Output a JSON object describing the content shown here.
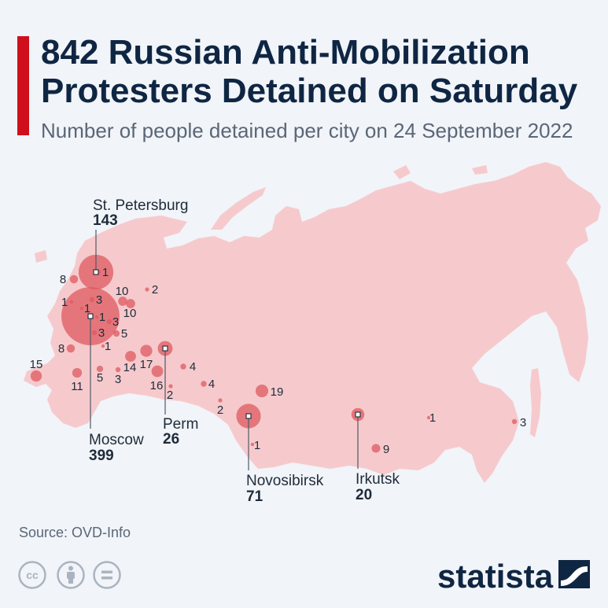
{
  "header": {
    "title": [
      "842 Russian Anti-Mobilization",
      "Protesters Detained on Saturday"
    ],
    "subtitle": "Number of people detained per city on 24 September 2022"
  },
  "map_data": {
    "type": "bubble-map",
    "labeled_cities": [
      {
        "city": "St. Petersburg",
        "value": 143
      },
      {
        "city": "Moscow",
        "value": 399
      },
      {
        "city": "Perm",
        "value": 26
      },
      {
        "city": "Novosibirsk",
        "value": 71
      },
      {
        "city": "Irkutsk",
        "value": 20
      }
    ],
    "markers": [
      {
        "value": 8
      },
      {
        "value": 1
      },
      {
        "value": 2
      },
      {
        "value": 10
      },
      {
        "value": 10
      },
      {
        "value": 1
      },
      {
        "value": 3
      },
      {
        "value": 1
      },
      {
        "value": 1
      },
      {
        "value": 3
      },
      {
        "value": 5
      },
      {
        "value": 3
      },
      {
        "value": 1
      },
      {
        "value": 8
      },
      {
        "value": 17
      },
      {
        "value": 14
      },
      {
        "value": 15
      },
      {
        "value": 11
      },
      {
        "value": 5
      },
      {
        "value": 3
      },
      {
        "value": 16
      },
      {
        "value": 2
      },
      {
        "value": 4
      },
      {
        "value": 4
      },
      {
        "value": 19
      },
      {
        "value": 2
      },
      {
        "value": 1
      },
      {
        "value": 9
      },
      {
        "value": 1
      },
      {
        "value": 3
      }
    ]
  },
  "footer": {
    "source": "Source: OVD-Info",
    "license": {
      "cc_text": "cc",
      "icons": [
        "creative-commons-icon",
        "attribution-icon",
        "no-derivatives-icon"
      ]
    },
    "brand": "statista",
    "brand_icon": "statista-logo-icon"
  },
  "colors": {
    "background": "#f1f4f8",
    "accent_bar": "#d00f1c",
    "title": "#0f2643",
    "land": "#f6cacd",
    "bubble": "#de5a5f"
  }
}
